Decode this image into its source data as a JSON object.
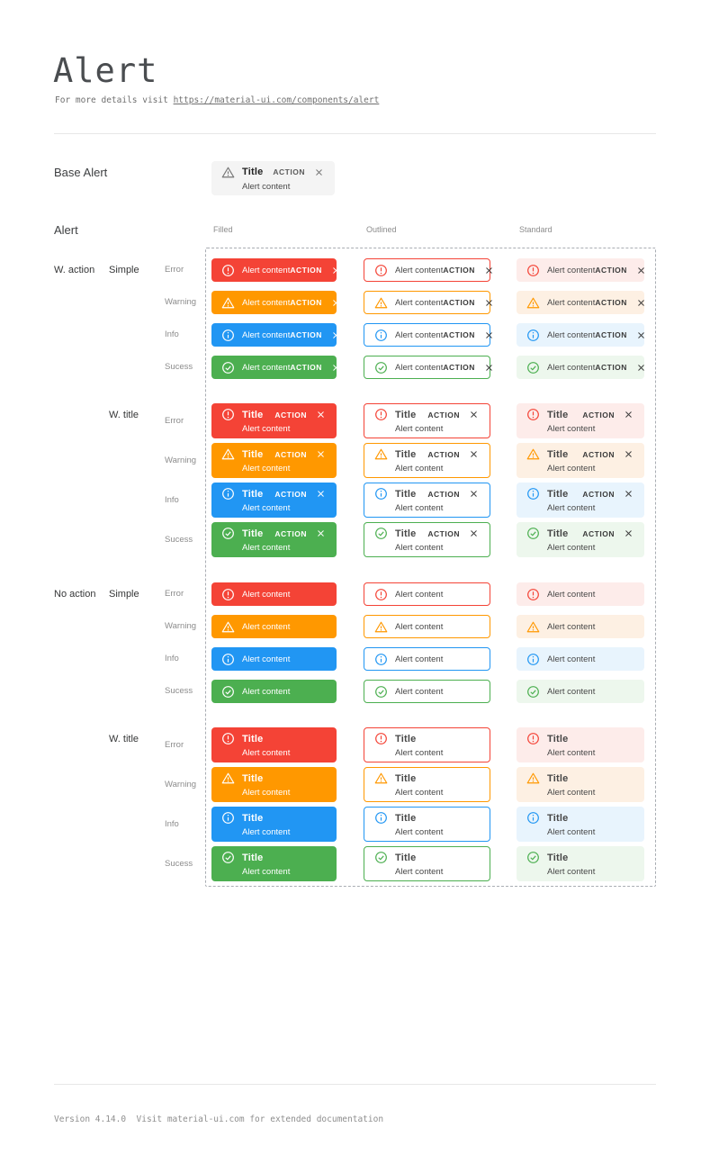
{
  "page": {
    "title": "Alert",
    "subtitle_prefix": "For more details visit ",
    "subtitle_link": "https://material-ui.com/components/alert",
    "footer_text": "Version 4.14.0  Visit material-ui.com for extended documentation"
  },
  "base_alert": {
    "heading": "Base Alert",
    "title": "Title",
    "content": "Alert content",
    "action_label": "ACTION",
    "icon": "warning-triangle-icon",
    "colors": {
      "background": "#f4f4f4",
      "icon": "#757575",
      "title": "#212121",
      "content": "#4a4a4a",
      "action": "#5b5b5b",
      "close": "#757575"
    }
  },
  "grid": {
    "heading": "Alert",
    "columns": [
      "Filled",
      "Outlined",
      "Standard"
    ],
    "variants": [
      "filled",
      "outlined",
      "standard"
    ],
    "strings": {
      "title": "Title",
      "content": "Alert content",
      "action": "ACTION"
    },
    "text_colors": {
      "filled_text": "#ffffff",
      "body_text": "#474747",
      "action_text": "#3b3b3b"
    },
    "severities": [
      {
        "key": "error",
        "label": "Error",
        "icon": "error-circle-icon",
        "main": "#f44336",
        "standard_bg": "#fdecea"
      },
      {
        "key": "warning",
        "label": "Warning",
        "icon": "warning-triangle-icon",
        "main": "#ff9800",
        "standard_bg": "#fdf0e3"
      },
      {
        "key": "info",
        "label": "Info",
        "icon": "info-circle-icon",
        "main": "#2196f3",
        "standard_bg": "#e8f4fd"
      },
      {
        "key": "success",
        "label": "Sucess",
        "icon": "check-circle-icon",
        "main": "#4caf50",
        "standard_bg": "#edf7ed"
      }
    ],
    "groups": [
      {
        "action_label": "W. action",
        "variant_label": "Simple",
        "with_action": true,
        "with_title": false
      },
      {
        "action_label": "",
        "variant_label": "W. title",
        "with_action": true,
        "with_title": true
      },
      {
        "action_label": "No action",
        "variant_label": "Simple",
        "with_action": false,
        "with_title": false
      },
      {
        "action_label": "",
        "variant_label": "W. title",
        "with_action": false,
        "with_title": true
      }
    ]
  }
}
